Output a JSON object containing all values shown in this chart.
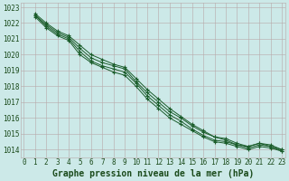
{
  "title": "Graphe pression niveau de la mer (hPa)",
  "xlim": [
    -0.3,
    23.3
  ],
  "ylim": [
    1013.5,
    1023.3
  ],
  "xticks": [
    0,
    1,
    2,
    3,
    4,
    5,
    6,
    7,
    8,
    9,
    10,
    11,
    12,
    13,
    14,
    15,
    16,
    17,
    18,
    19,
    20,
    21,
    22,
    23
  ],
  "yticks": [
    1014,
    1015,
    1016,
    1017,
    1018,
    1019,
    1020,
    1021,
    1022,
    1023
  ],
  "background_color": "#cce9e8",
  "grid_color": "#b8a8a8",
  "line_color": "#1a5c2a",
  "series": [
    [
      1022.6,
      1022.0,
      1021.5,
      1021.2,
      1020.6,
      1020.0,
      1019.7,
      1019.4,
      1019.2,
      1018.5,
      1017.8,
      1017.2,
      1016.6,
      1016.1,
      1015.6,
      1015.2,
      1014.8,
      1014.7,
      1014.4,
      1014.2,
      1014.4,
      1014.3,
      1014.0
    ],
    [
      1022.5,
      1021.9,
      1021.4,
      1021.1,
      1020.4,
      1019.8,
      1019.5,
      1019.3,
      1019.1,
      1018.3,
      1017.6,
      1017.0,
      1016.4,
      1016.0,
      1015.5,
      1015.1,
      1014.8,
      1014.6,
      1014.3,
      1014.2,
      1014.4,
      1014.2,
      1014.0
    ],
    [
      1022.5,
      1021.8,
      1021.3,
      1021.0,
      1020.2,
      1019.6,
      1019.3,
      1019.1,
      1018.9,
      1018.2,
      1017.4,
      1016.8,
      1016.2,
      1015.8,
      1015.3,
      1014.9,
      1014.6,
      1014.5,
      1014.3,
      1014.1,
      1014.3,
      1014.2,
      1013.9
    ],
    [
      1022.4,
      1021.7,
      1021.2,
      1020.9,
      1020.0,
      1019.5,
      1019.2,
      1018.9,
      1018.7,
      1018.0,
      1017.2,
      1016.6,
      1016.0,
      1015.6,
      1015.2,
      1014.8,
      1014.5,
      1014.4,
      1014.2,
      1014.0,
      1014.2,
      1014.1,
      1013.9
    ]
  ],
  "marker": "+",
  "markersize": 3.5,
  "linewidth": 0.7,
  "tick_fontsize": 5.5,
  "xlabel_fontsize": 7.0
}
